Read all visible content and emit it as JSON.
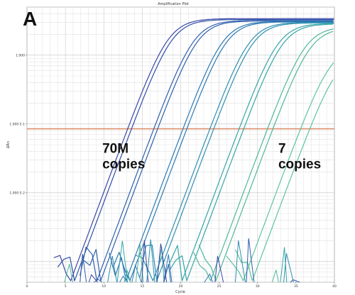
{
  "panel_label": "A",
  "chart_data": {
    "type": "line",
    "title": "Amplification Plot",
    "xlabel": "Cycle",
    "ylabel": "ΔRn",
    "y_scale": "log",
    "xlim": [
      0,
      40
    ],
    "ylim": [
      0.0005,
      5
    ],
    "grid": true,
    "x_tick_labels": [
      "0",
      "5",
      "10",
      "15",
      "20",
      "25",
      "30",
      "35",
      "40"
    ],
    "x_ticks": [
      0,
      5,
      10,
      15,
      20,
      25,
      30,
      35,
      40
    ],
    "y_tick_labels": [
      "1.000",
      "1.000 E-1",
      "1.000 E-2"
    ],
    "y_ticks": [
      1,
      0.1,
      0.01
    ],
    "threshold": {
      "value": 0.085,
      "color": "#d9825a"
    },
    "annotations": [
      {
        "text": "70M\ncopies",
        "x": 9.8,
        "y": 0.038
      },
      {
        "text": "7\ncopies",
        "x": 32.7,
        "y": 0.038
      }
    ],
    "series_colors": [
      "#3a47a6",
      "#2f5fae",
      "#2b79b3",
      "#2e8fb0",
      "#35a4a6",
      "#4fb79a"
    ],
    "series": [
      {
        "ct": 13.1,
        "color": "#3a47a6",
        "plateau": 3.4
      },
      {
        "ct": 13.6,
        "color": "#2f4fa8",
        "plateau": 3.3
      },
      {
        "ct": 16.5,
        "color": "#2f5fae",
        "plateau": 3.2
      },
      {
        "ct": 17.0,
        "color": "#2f5fae",
        "plateau": 3.15
      },
      {
        "ct": 20.3,
        "color": "#2b79b3",
        "plateau": 3.1
      },
      {
        "ct": 20.8,
        "color": "#2b79b3",
        "plateau": 3.05
      },
      {
        "ct": 23.8,
        "color": "#2e8fb0",
        "plateau": 3.0
      },
      {
        "ct": 24.3,
        "color": "#2e8fb0",
        "plateau": 2.95
      },
      {
        "ct": 27.6,
        "color": "#35a4a6",
        "plateau": 2.9
      },
      {
        "ct": 28.2,
        "color": "#35a4a6",
        "plateau": 2.85
      },
      {
        "ct": 31.3,
        "color": "#4fb79a",
        "plateau": 2.6
      },
      {
        "ct": 32.0,
        "color": "#4fb79a",
        "plateau": 2.5
      },
      {
        "ct": 35.6,
        "color": "#5cc49b",
        "plateau": 1.4
      },
      {
        "ct": 36.8,
        "color": "#5cc49b",
        "plateau": 1.1
      }
    ]
  }
}
